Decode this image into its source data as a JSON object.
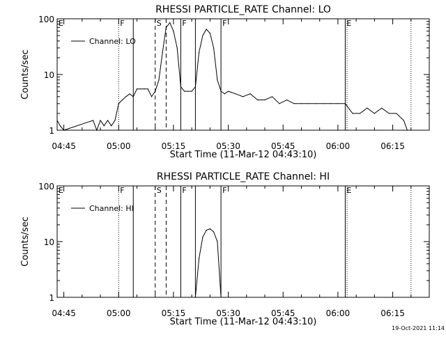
{
  "stamp": "19-Oct-2021 11:14",
  "chart_data": [
    {
      "type": "line",
      "title": "RHESSI PARTICLE_RATE Channel: LO",
      "xlabel": "Start Time (11-Mar-12 04:43:10)",
      "ylabel": "Counts/sec",
      "yscale": "log",
      "ylim": [
        1,
        100
      ],
      "xlim": [
        "04:43:10",
        "06:25:00"
      ],
      "yticks": [
        "1",
        "10",
        "100"
      ],
      "xticks": [
        "04:45",
        "05:00",
        "05:15",
        "05:30",
        "05:45",
        "06:00",
        "06:15"
      ],
      "legend": {
        "position": "top-left",
        "entries": [
          "Channel: LO"
        ]
      },
      "markers": [
        {
          "label": "E",
          "time": "04:43:10",
          "style": "solid"
        },
        {
          "label": "F",
          "time": "05:00",
          "style": "dotted"
        },
        {
          "label": "",
          "time": "05:04",
          "style": "solid"
        },
        {
          "label": "S",
          "time": "05:10",
          "style": "dashed"
        },
        {
          "label": "",
          "time": "05:13",
          "style": "dashed"
        },
        {
          "label": "F",
          "time": "05:17",
          "style": "solid"
        },
        {
          "label": "",
          "time": "05:21",
          "style": "solid"
        },
        {
          "label": "F",
          "time": "05:28",
          "style": "solid"
        },
        {
          "label": "E",
          "time": "06:02",
          "style": "solid"
        },
        {
          "label": "",
          "time": "06:02.5",
          "style": "dotted"
        },
        {
          "label": "",
          "time": "06:20",
          "style": "dotted"
        }
      ],
      "series": [
        {
          "name": "Channel: LO",
          "x": [
            "04:43:10",
            "04:44",
            "04:45",
            "04:53",
            "04:54",
            "04:55",
            "04:56",
            "04:57",
            "04:58",
            "04:59",
            "05:00",
            "05:01",
            "05:02",
            "05:03",
            "05:04",
            "05:05",
            "05:06",
            "05:07",
            "05:08",
            "05:09",
            "05:10",
            "05:11",
            "05:12",
            "05:13",
            "05:14",
            "05:15",
            "05:16",
            "05:17",
            "05:18",
            "05:19",
            "05:20",
            "05:21",
            "05:22",
            "05:23",
            "05:24",
            "05:25",
            "05:26",
            "05:27",
            "05:28",
            "05:29",
            "05:30",
            "05:32",
            "05:34",
            "05:36",
            "05:38",
            "05:40",
            "05:42",
            "05:44",
            "05:46",
            "05:48",
            "05:50",
            "05:52",
            "05:54",
            "05:56",
            "05:58",
            "06:00",
            "06:02",
            "06:04",
            "06:06",
            "06:08",
            "06:10",
            "06:12",
            "06:14",
            "06:16",
            "06:18",
            "06:19",
            "06:20"
          ],
          "values": [
            1.5,
            1.2,
            1,
            1.5,
            1,
            1.5,
            1.2,
            1.5,
            1.2,
            1.5,
            3,
            3.5,
            4,
            4.5,
            4,
            5.5,
            5.5,
            5.5,
            5.5,
            4,
            5,
            8,
            25,
            70,
            85,
            60,
            30,
            6,
            5,
            5,
            5,
            6,
            25,
            50,
            65,
            55,
            30,
            8,
            5,
            4.5,
            5,
            4.5,
            4,
            4.5,
            3.5,
            3.5,
            4,
            3,
            3.5,
            3,
            3,
            3,
            3,
            3,
            3,
            3,
            3,
            2,
            2,
            2.5,
            2,
            2.5,
            2,
            2,
            1.5,
            1,
            1
          ]
        }
      ]
    },
    {
      "type": "line",
      "title": "RHESSI PARTICLE_RATE Channel: HI",
      "xlabel": "Start Time (11-Mar-12 04:43:10)",
      "ylabel": "Counts/sec",
      "yscale": "log",
      "ylim": [
        1,
        100
      ],
      "xlim": [
        "04:43:10",
        "06:25:00"
      ],
      "yticks": [
        "1",
        "10",
        "100"
      ],
      "xticks": [
        "04:45",
        "05:00",
        "05:15",
        "05:30",
        "05:45",
        "06:00",
        "06:15"
      ],
      "legend": {
        "position": "top-left",
        "entries": [
          "Channel: HI"
        ]
      },
      "markers": [
        {
          "label": "E",
          "time": "04:43:10",
          "style": "solid"
        },
        {
          "label": "F",
          "time": "05:00",
          "style": "dotted"
        },
        {
          "label": "",
          "time": "05:04",
          "style": "solid"
        },
        {
          "label": "S",
          "time": "05:10",
          "style": "dashed"
        },
        {
          "label": "",
          "time": "05:13",
          "style": "dashed"
        },
        {
          "label": "F",
          "time": "05:17",
          "style": "solid"
        },
        {
          "label": "",
          "time": "05:21",
          "style": "solid"
        },
        {
          "label": "F",
          "time": "05:28",
          "style": "solid"
        },
        {
          "label": "E",
          "time": "06:02",
          "style": "solid"
        },
        {
          "label": "",
          "time": "06:02.5",
          "style": "dotted"
        },
        {
          "label": "",
          "time": "06:20",
          "style": "dotted"
        }
      ],
      "series": [
        {
          "name": "Channel: HI",
          "x": [
            "05:21",
            "05:22",
            "05:23",
            "05:24",
            "05:25",
            "05:26",
            "05:27",
            "05:28"
          ],
          "values": [
            1,
            5,
            12,
            16,
            17,
            15,
            10,
            1
          ]
        }
      ]
    }
  ]
}
